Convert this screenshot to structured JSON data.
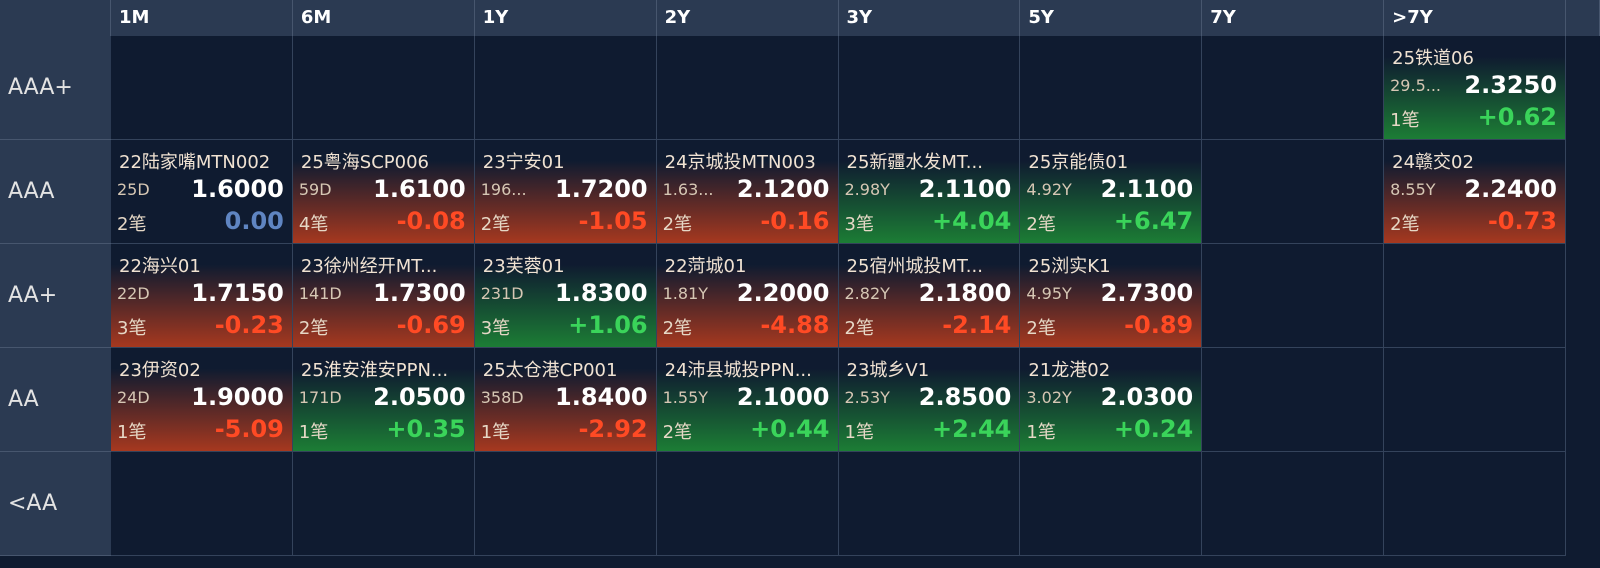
{
  "table": {
    "columns": [
      "1M",
      "6M",
      "1Y",
      "2Y",
      "3Y",
      "5Y",
      "7Y",
      ">7Y"
    ],
    "rows": [
      {
        "label": "AAA+",
        "cells": [
          null,
          null,
          null,
          null,
          null,
          null,
          null,
          {
            "name": "25铁道06",
            "term": "29.5...",
            "price": "2.3250",
            "count": "1笔",
            "change": "+0.62"
          }
        ]
      },
      {
        "label": "AAA",
        "cells": [
          {
            "name": "22陆家嘴MTN002",
            "term": "25D",
            "price": "1.6000",
            "count": "2笔",
            "change": "0.00"
          },
          {
            "name": "25粤海SCP006",
            "term": "59D",
            "price": "1.6100",
            "count": "4笔",
            "change": "-0.08"
          },
          {
            "name": "23宁安01",
            "term": "196...",
            "price": "1.7200",
            "count": "2笔",
            "change": "-1.05"
          },
          {
            "name": "24京城投MTN003",
            "term": "1.63...",
            "price": "2.1200",
            "count": "2笔",
            "change": "-0.16"
          },
          {
            "name": "25新疆水发MT...",
            "term": "2.98Y",
            "price": "2.1100",
            "count": "3笔",
            "change": "+4.04"
          },
          {
            "name": "25京能债01",
            "term": "4.92Y",
            "price": "2.1100",
            "count": "2笔",
            "change": "+6.47"
          },
          null,
          {
            "name": "24赣交02",
            "term": "8.55Y",
            "price": "2.2400",
            "count": "2笔",
            "change": "-0.73"
          }
        ]
      },
      {
        "label": "AA+",
        "cells": [
          {
            "name": "22海兴01",
            "term": "22D",
            "price": "1.7150",
            "count": "3笔",
            "change": "-0.23"
          },
          {
            "name": "23徐州经开MT...",
            "term": "141D",
            "price": "1.7300",
            "count": "2笔",
            "change": "-0.69"
          },
          {
            "name": "23芙蓉01",
            "term": "231D",
            "price": "1.8300",
            "count": "3笔",
            "change": "+1.06"
          },
          {
            "name": "22菏城01",
            "term": "1.81Y",
            "price": "2.2000",
            "count": "2笔",
            "change": "-4.88"
          },
          {
            "name": "25宿州城投MT...",
            "term": "2.82Y",
            "price": "2.1800",
            "count": "2笔",
            "change": "-2.14"
          },
          {
            "name": "25浏实K1",
            "term": "4.95Y",
            "price": "2.7300",
            "count": "2笔",
            "change": "-0.89"
          },
          null,
          null
        ]
      },
      {
        "label": "AA",
        "cells": [
          {
            "name": "23伊资02",
            "term": "24D",
            "price": "1.9000",
            "count": "1笔",
            "change": "-5.09"
          },
          {
            "name": "25淮安淮安PPN...",
            "term": "171D",
            "price": "2.0500",
            "count": "1笔",
            "change": "+0.35"
          },
          {
            "name": "25太仓港CP001",
            "term": "358D",
            "price": "1.8400",
            "count": "1笔",
            "change": "-2.92"
          },
          {
            "name": "24沛县城投PPN...",
            "term": "1.55Y",
            "price": "2.1000",
            "count": "2笔",
            "change": "+0.44"
          },
          {
            "name": "23城乡V1",
            "term": "2.53Y",
            "price": "2.8500",
            "count": "1笔",
            "change": "+2.44"
          },
          {
            "name": "21龙港02",
            "term": "3.02Y",
            "price": "2.0300",
            "count": "1笔",
            "change": "+0.24"
          },
          null,
          null
        ]
      },
      {
        "label": "<AA",
        "cells": [
          null,
          null,
          null,
          null,
          null,
          null,
          null,
          null
        ]
      }
    ]
  }
}
